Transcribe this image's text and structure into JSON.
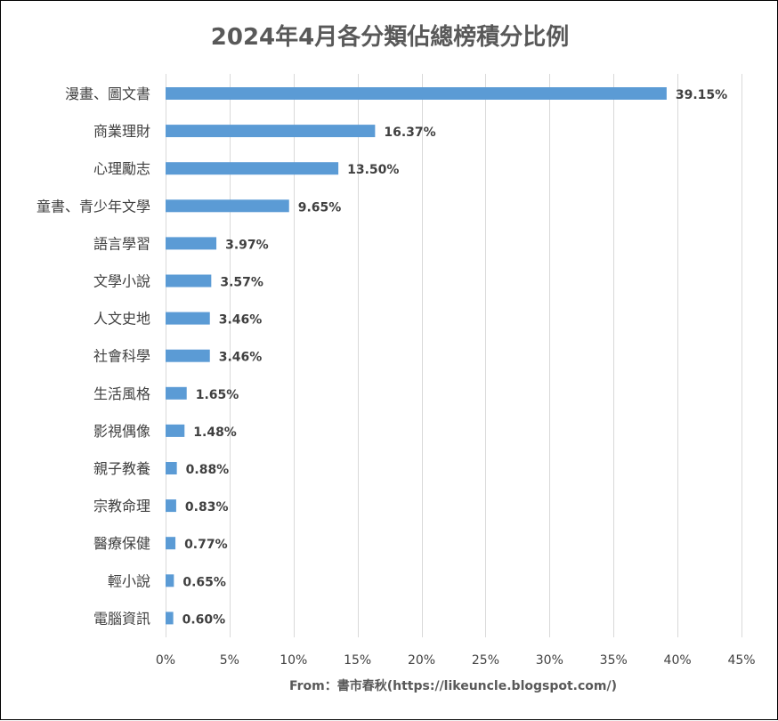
{
  "chart_data": {
    "type": "bar",
    "orientation": "horizontal",
    "title": "2024年4月各分類佔總榜積分比例",
    "categories": [
      "漫畫、圖文書",
      "商業理財",
      "心理勵志",
      "童書、青少年文學",
      "語言學習",
      "文學小說",
      "人文史地",
      "社會科學",
      "生活風格",
      "影視偶像",
      "親子教養",
      "宗教命理",
      "醫療保健",
      "輕小說",
      "電腦資訊"
    ],
    "values": [
      39.15,
      16.37,
      13.5,
      9.65,
      3.97,
      3.57,
      3.46,
      3.46,
      1.65,
      1.48,
      0.88,
      0.83,
      0.77,
      0.65,
      0.6
    ],
    "value_labels": [
      "39.15%",
      "16.37%",
      "13.50%",
      "9.65%",
      "3.97%",
      "3.57%",
      "3.46%",
      "3.46%",
      "1.65%",
      "1.48%",
      "0.88%",
      "0.83%",
      "0.77%",
      "0.65%",
      "0.60%"
    ],
    "x_ticks": [
      0,
      5,
      10,
      15,
      20,
      25,
      30,
      35,
      40,
      45
    ],
    "x_tick_labels": [
      "0%",
      "5%",
      "10%",
      "15%",
      "20%",
      "25%",
      "30%",
      "35%",
      "40%",
      "45%"
    ],
    "xlim": [
      0,
      45
    ],
    "grid": true,
    "legend": "none",
    "bar_color": "#5b9bd5",
    "grid_color": "#d9d9d9",
    "source": "From：書市春秋(https://likeuncle.blogspot.com/)"
  }
}
